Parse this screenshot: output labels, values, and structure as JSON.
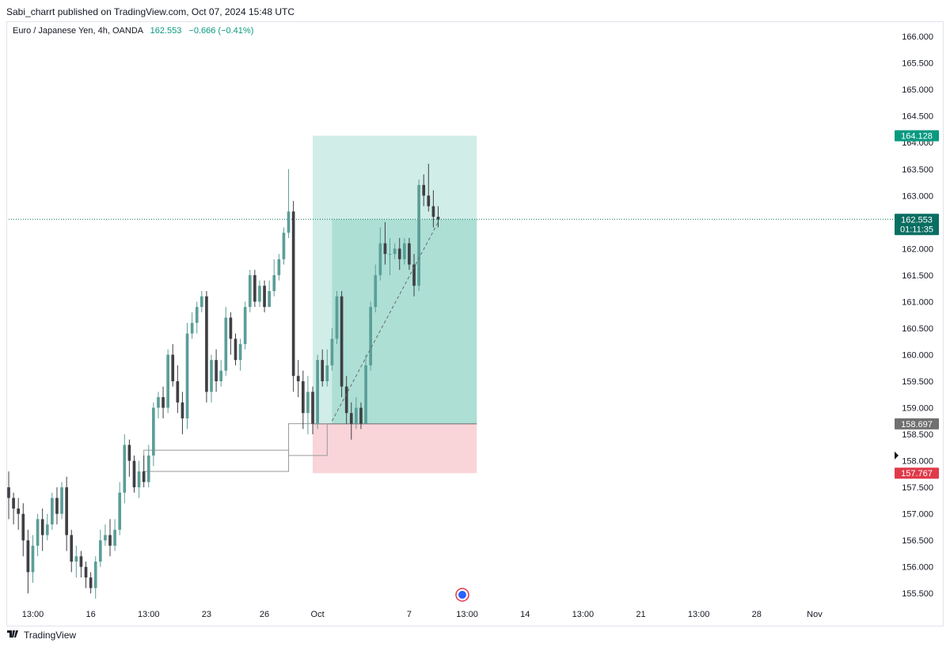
{
  "header": {
    "published": "Sabi_charrt published on TradingView.com, Oct 07, 2024 15:48 UTC"
  },
  "legend": {
    "symbol": "Euro / Japanese Yen, 4h, OANDA",
    "last": "162.553",
    "change": "−0.666 (−0.41%)"
  },
  "footer": {
    "logo_icon": "tradingview-logo-icon",
    "brand": "TradingView"
  },
  "colors": {
    "up": "#5b9e98",
    "down": "#3f3f44",
    "target_zone": "#8fd3c6",
    "stop_zone": "#f7c6cc",
    "last_price": "#0b6e62",
    "target_label": "#089981",
    "stop_label": "#e03a4a",
    "entry_label": "#707070"
  },
  "chart_data": {
    "type": "candlestick",
    "symbol": "Euro / Japanese Yen",
    "interval": "4h",
    "source": "OANDA",
    "y_ticks": [
      "166.000",
      "165.500",
      "165.000",
      "164.500",
      "164.000",
      "163.500",
      "163.000",
      "162.500",
      "162.000",
      "161.500",
      "161.000",
      "160.500",
      "160.000",
      "159.500",
      "159.000",
      "158.500",
      "158.000",
      "157.500",
      "157.000",
      "156.500",
      "156.000",
      "155.500"
    ],
    "x_ticks": [
      {
        "label": "13:00",
        "i": 5
      },
      {
        "label": "16",
        "i": 17
      },
      {
        "label": "13:00",
        "i": 29
      },
      {
        "label": "23",
        "i": 41
      },
      {
        "label": "26",
        "i": 53
      },
      {
        "label": "Oct",
        "i": 64
      },
      {
        "label": "7",
        "i": 83
      },
      {
        "label": "13:00",
        "i": 95
      },
      {
        "label": "14",
        "i": 107
      },
      {
        "label": "13:00",
        "i": 119
      },
      {
        "label": "21",
        "i": 131
      },
      {
        "label": "13:00",
        "i": 143
      },
      {
        "label": "28",
        "i": 155
      },
      {
        "label": "Nov",
        "i": 167
      }
    ],
    "ylim": [
      155.28,
      166.27
    ],
    "candles": [
      [
        157.5,
        157.3,
        157.8,
        156.9
      ],
      [
        157.3,
        157.1,
        157.4,
        156.8
      ],
      [
        157.1,
        157.0,
        157.3,
        156.7
      ],
      [
        157.0,
        156.5,
        157.2,
        156.2
      ],
      [
        156.5,
        155.9,
        156.7,
        155.5
      ],
      [
        155.9,
        156.4,
        156.6,
        155.7
      ],
      [
        156.4,
        156.9,
        157.0,
        156.2
      ],
      [
        156.9,
        156.6,
        157.1,
        156.3
      ],
      [
        156.6,
        156.8,
        157.0,
        156.5
      ],
      [
        156.8,
        157.3,
        157.4,
        156.7
      ],
      [
        157.3,
        157.0,
        157.5,
        156.8
      ],
      [
        157.0,
        157.5,
        157.6,
        156.9
      ],
      [
        157.5,
        156.6,
        157.7,
        156.3
      ],
      [
        156.6,
        156.1,
        156.7,
        155.9
      ],
      [
        156.1,
        156.2,
        156.4,
        155.8
      ],
      [
        156.2,
        156.0,
        156.3,
        155.8
      ],
      [
        156.0,
        155.8,
        156.1,
        155.6
      ],
      [
        155.8,
        155.6,
        155.9,
        155.5
      ],
      [
        155.6,
        156.1,
        156.2,
        155.4
      ],
      [
        156.1,
        156.5,
        156.7,
        156.0
      ],
      [
        156.5,
        156.6,
        156.8,
        156.4
      ],
      [
        156.6,
        156.4,
        156.9,
        156.2
      ],
      [
        156.4,
        156.7,
        156.9,
        156.3
      ],
      [
        156.7,
        157.4,
        157.6,
        156.6
      ],
      [
        157.4,
        158.3,
        158.5,
        157.2
      ],
      [
        158.3,
        158.0,
        158.4,
        157.7
      ],
      [
        158.0,
        157.5,
        158.1,
        157.4
      ],
      [
        157.5,
        157.8,
        158.0,
        157.3
      ],
      [
        157.8,
        157.6,
        158.1,
        157.5
      ],
      [
        157.6,
        158.1,
        158.3,
        157.5
      ],
      [
        158.1,
        159.0,
        159.1,
        157.9
      ],
      [
        159.0,
        159.2,
        159.3,
        158.8
      ],
      [
        159.2,
        159.0,
        159.4,
        158.8
      ],
      [
        159.0,
        160.0,
        160.1,
        158.9
      ],
      [
        160.0,
        159.5,
        160.2,
        159.4
      ],
      [
        159.5,
        159.1,
        159.8,
        158.9
      ],
      [
        159.1,
        158.8,
        159.3,
        158.5
      ],
      [
        158.8,
        160.4,
        160.6,
        158.6
      ],
      [
        160.4,
        160.6,
        160.8,
        160.3
      ],
      [
        160.6,
        160.9,
        161.0,
        160.4
      ],
      [
        160.9,
        161.1,
        161.2,
        160.8
      ],
      [
        161.1,
        159.3,
        161.2,
        159.1
      ],
      [
        159.3,
        159.9,
        160.0,
        159.1
      ],
      [
        159.9,
        159.5,
        160.1,
        159.3
      ],
      [
        159.5,
        159.7,
        159.9,
        159.4
      ],
      [
        159.7,
        160.7,
        160.9,
        159.6
      ],
      [
        160.7,
        160.3,
        160.8,
        160.0
      ],
      [
        160.3,
        159.9,
        160.4,
        159.8
      ],
      [
        159.9,
        160.2,
        160.3,
        159.7
      ],
      [
        160.2,
        160.9,
        161.0,
        160.1
      ],
      [
        160.9,
        161.5,
        161.6,
        160.8
      ],
      [
        161.5,
        161.0,
        161.6,
        160.9
      ],
      [
        161.0,
        161.3,
        161.4,
        160.9
      ],
      [
        161.3,
        160.9,
        161.4,
        160.8
      ],
      [
        160.9,
        161.2,
        161.4,
        160.9
      ],
      [
        161.2,
        161.5,
        161.8,
        161.1
      ],
      [
        161.5,
        161.8,
        161.9,
        161.4
      ],
      [
        161.8,
        162.3,
        162.4,
        161.7
      ],
      [
        162.3,
        162.7,
        163.5,
        162.2
      ],
      [
        162.7,
        159.6,
        162.9,
        159.3
      ],
      [
        159.6,
        159.5,
        159.9,
        159.2
      ],
      [
        159.5,
        158.9,
        159.7,
        158.6
      ],
      [
        158.9,
        159.3,
        159.6,
        158.5
      ],
      [
        159.3,
        158.7,
        159.4,
        158.5
      ],
      [
        158.7,
        159.9,
        160.0,
        158.6
      ],
      [
        159.9,
        159.5,
        160.1,
        159.4
      ],
      [
        159.5,
        159.8,
        160.1,
        159.4
      ],
      [
        159.8,
        160.3,
        160.5,
        159.7
      ],
      [
        160.3,
        161.1,
        161.2,
        160.2
      ],
      [
        161.1,
        159.4,
        161.2,
        159.2
      ],
      [
        159.4,
        158.9,
        159.6,
        158.7
      ],
      [
        158.9,
        158.7,
        159.1,
        158.4
      ],
      [
        158.7,
        159.0,
        159.2,
        158.6
      ],
      [
        159.0,
        158.7,
        159.1,
        158.6
      ],
      [
        158.7,
        159.8,
        160.0,
        158.7
      ],
      [
        159.8,
        160.9,
        161.0,
        159.7
      ],
      [
        160.9,
        161.5,
        161.7,
        160.8
      ],
      [
        161.5,
        162.1,
        162.4,
        161.4
      ],
      [
        162.1,
        161.9,
        162.5,
        161.7
      ],
      [
        161.9,
        161.9,
        162.2,
        161.5
      ],
      [
        161.9,
        162.0,
        162.1,
        161.8
      ],
      [
        162.0,
        161.8,
        162.2,
        161.6
      ],
      [
        161.8,
        162.1,
        162.2,
        161.7
      ],
      [
        162.1,
        161.7,
        162.2,
        161.6
      ],
      [
        161.7,
        161.3,
        161.9,
        161.1
      ],
      [
        161.3,
        163.2,
        163.3,
        161.2
      ],
      [
        163.2,
        163.0,
        163.4,
        162.8
      ],
      [
        163.0,
        162.8,
        163.6,
        162.7
      ],
      [
        162.8,
        162.6,
        163.1,
        162.4
      ],
      [
        162.6,
        162.55,
        162.8,
        162.4
      ]
    ],
    "bars_shown": 90,
    "last_price": 162.553,
    "countdown": "01:11:35",
    "position": {
      "type": "long",
      "entry": 158.697,
      "target": 164.128,
      "stop": 157.767,
      "start_i": 63,
      "end_i": 97,
      "entry_i": 67
    },
    "rectangles": [
      {
        "i0": 28,
        "i1": 58,
        "top": 158.2,
        "bottom": 157.8
      },
      {
        "i0": 58,
        "i1": 66,
        "top": 158.7,
        "bottom": 158.1
      }
    ],
    "trend_line": {
      "i0": 67,
      "v0": 158.75,
      "i1": 89,
      "v1": 162.5
    },
    "event_marker": {
      "i": 94,
      "icon": "economic-event-icon"
    },
    "y_labels": {
      "target": "164.128",
      "last": "162.553",
      "entry": "158.697",
      "stop": "157.767"
    }
  }
}
